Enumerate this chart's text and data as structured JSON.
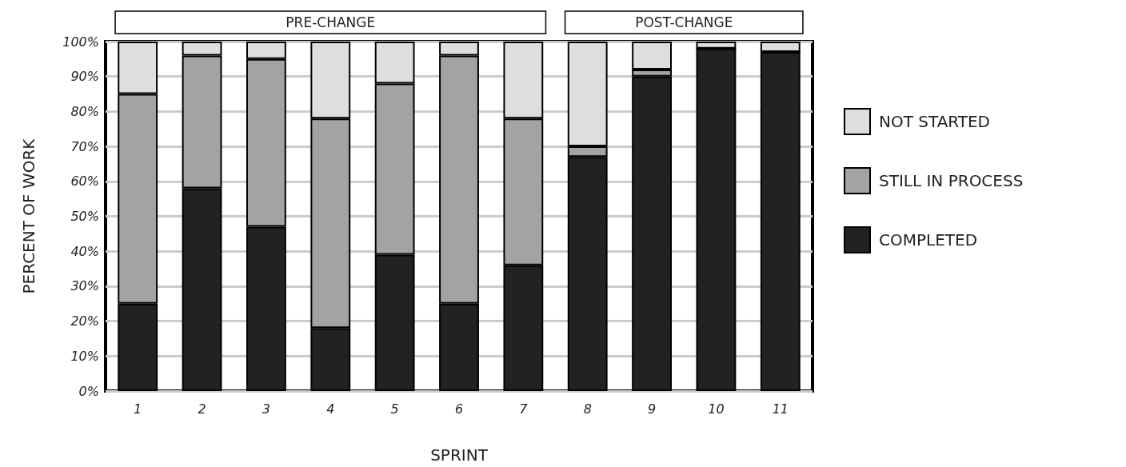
{
  "chart_data": {
    "type": "bar",
    "stacked": true,
    "categories": [
      "1",
      "2",
      "3",
      "4",
      "5",
      "6",
      "7",
      "8",
      "9",
      "10",
      "11"
    ],
    "series": [
      {
        "name": "COMPLETED",
        "color": "#222222",
        "values": [
          25,
          58,
          47,
          18,
          39,
          25,
          36,
          67,
          90,
          98,
          97
        ]
      },
      {
        "name": "STILL IN PROCESS",
        "color": "#a3a3a3",
        "values": [
          60,
          38,
          48,
          60,
          49,
          71,
          42,
          3,
          2,
          0,
          0
        ]
      },
      {
        "name": "NOT STARTED",
        "color": "#dedede",
        "values": [
          15,
          4,
          5,
          22,
          12,
          4,
          22,
          30,
          8,
          2,
          3
        ]
      }
    ],
    "xlabel": "SPRINT",
    "ylabel": "PERCENT OF WORK",
    "ylim": [
      0,
      100
    ],
    "yticks": [
      {
        "value": 0,
        "label": "0%"
      },
      {
        "value": 10,
        "label": "10%"
      },
      {
        "value": 20,
        "label": "20%"
      },
      {
        "value": 30,
        "label": "30%"
      },
      {
        "value": 40,
        "label": "40%"
      },
      {
        "value": 50,
        "label": "50%"
      },
      {
        "value": 60,
        "label": "60%"
      },
      {
        "value": 70,
        "label": "70%"
      },
      {
        "value": 80,
        "label": "80%"
      },
      {
        "value": 90,
        "label": "90%"
      },
      {
        "value": 100,
        "label": "100%"
      }
    ],
    "annotations": [
      "PRE-CHANGE",
      "POST-CHANGE"
    ],
    "grid": "y",
    "legend": "right"
  }
}
